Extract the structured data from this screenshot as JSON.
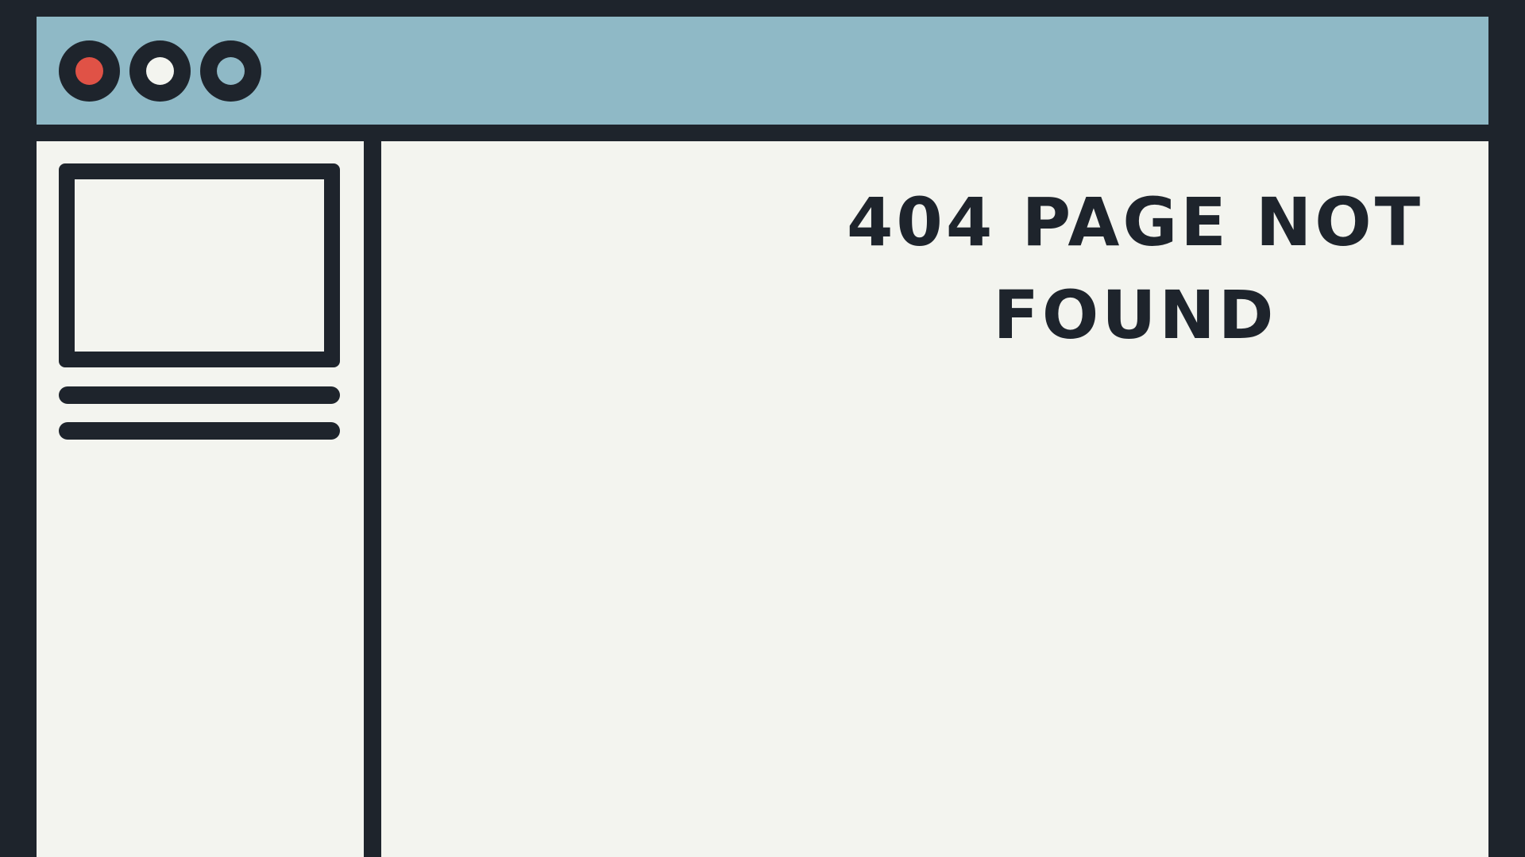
{
  "theme": {
    "frame_color": "#1e242c",
    "titlebar_color": "#8fb9c6",
    "paper_color": "#f3f4ef",
    "close_color": "#e05246"
  },
  "window_controls": {
    "close_icon": "circle-red",
    "minimize_icon": "circle-white",
    "maximize_icon": "circle-blue"
  },
  "sidebar": {
    "thumbnail_icon": "image-placeholder",
    "skeleton_lines": 2
  },
  "main": {
    "error_title": "404 PAGE NOT FOUND"
  }
}
